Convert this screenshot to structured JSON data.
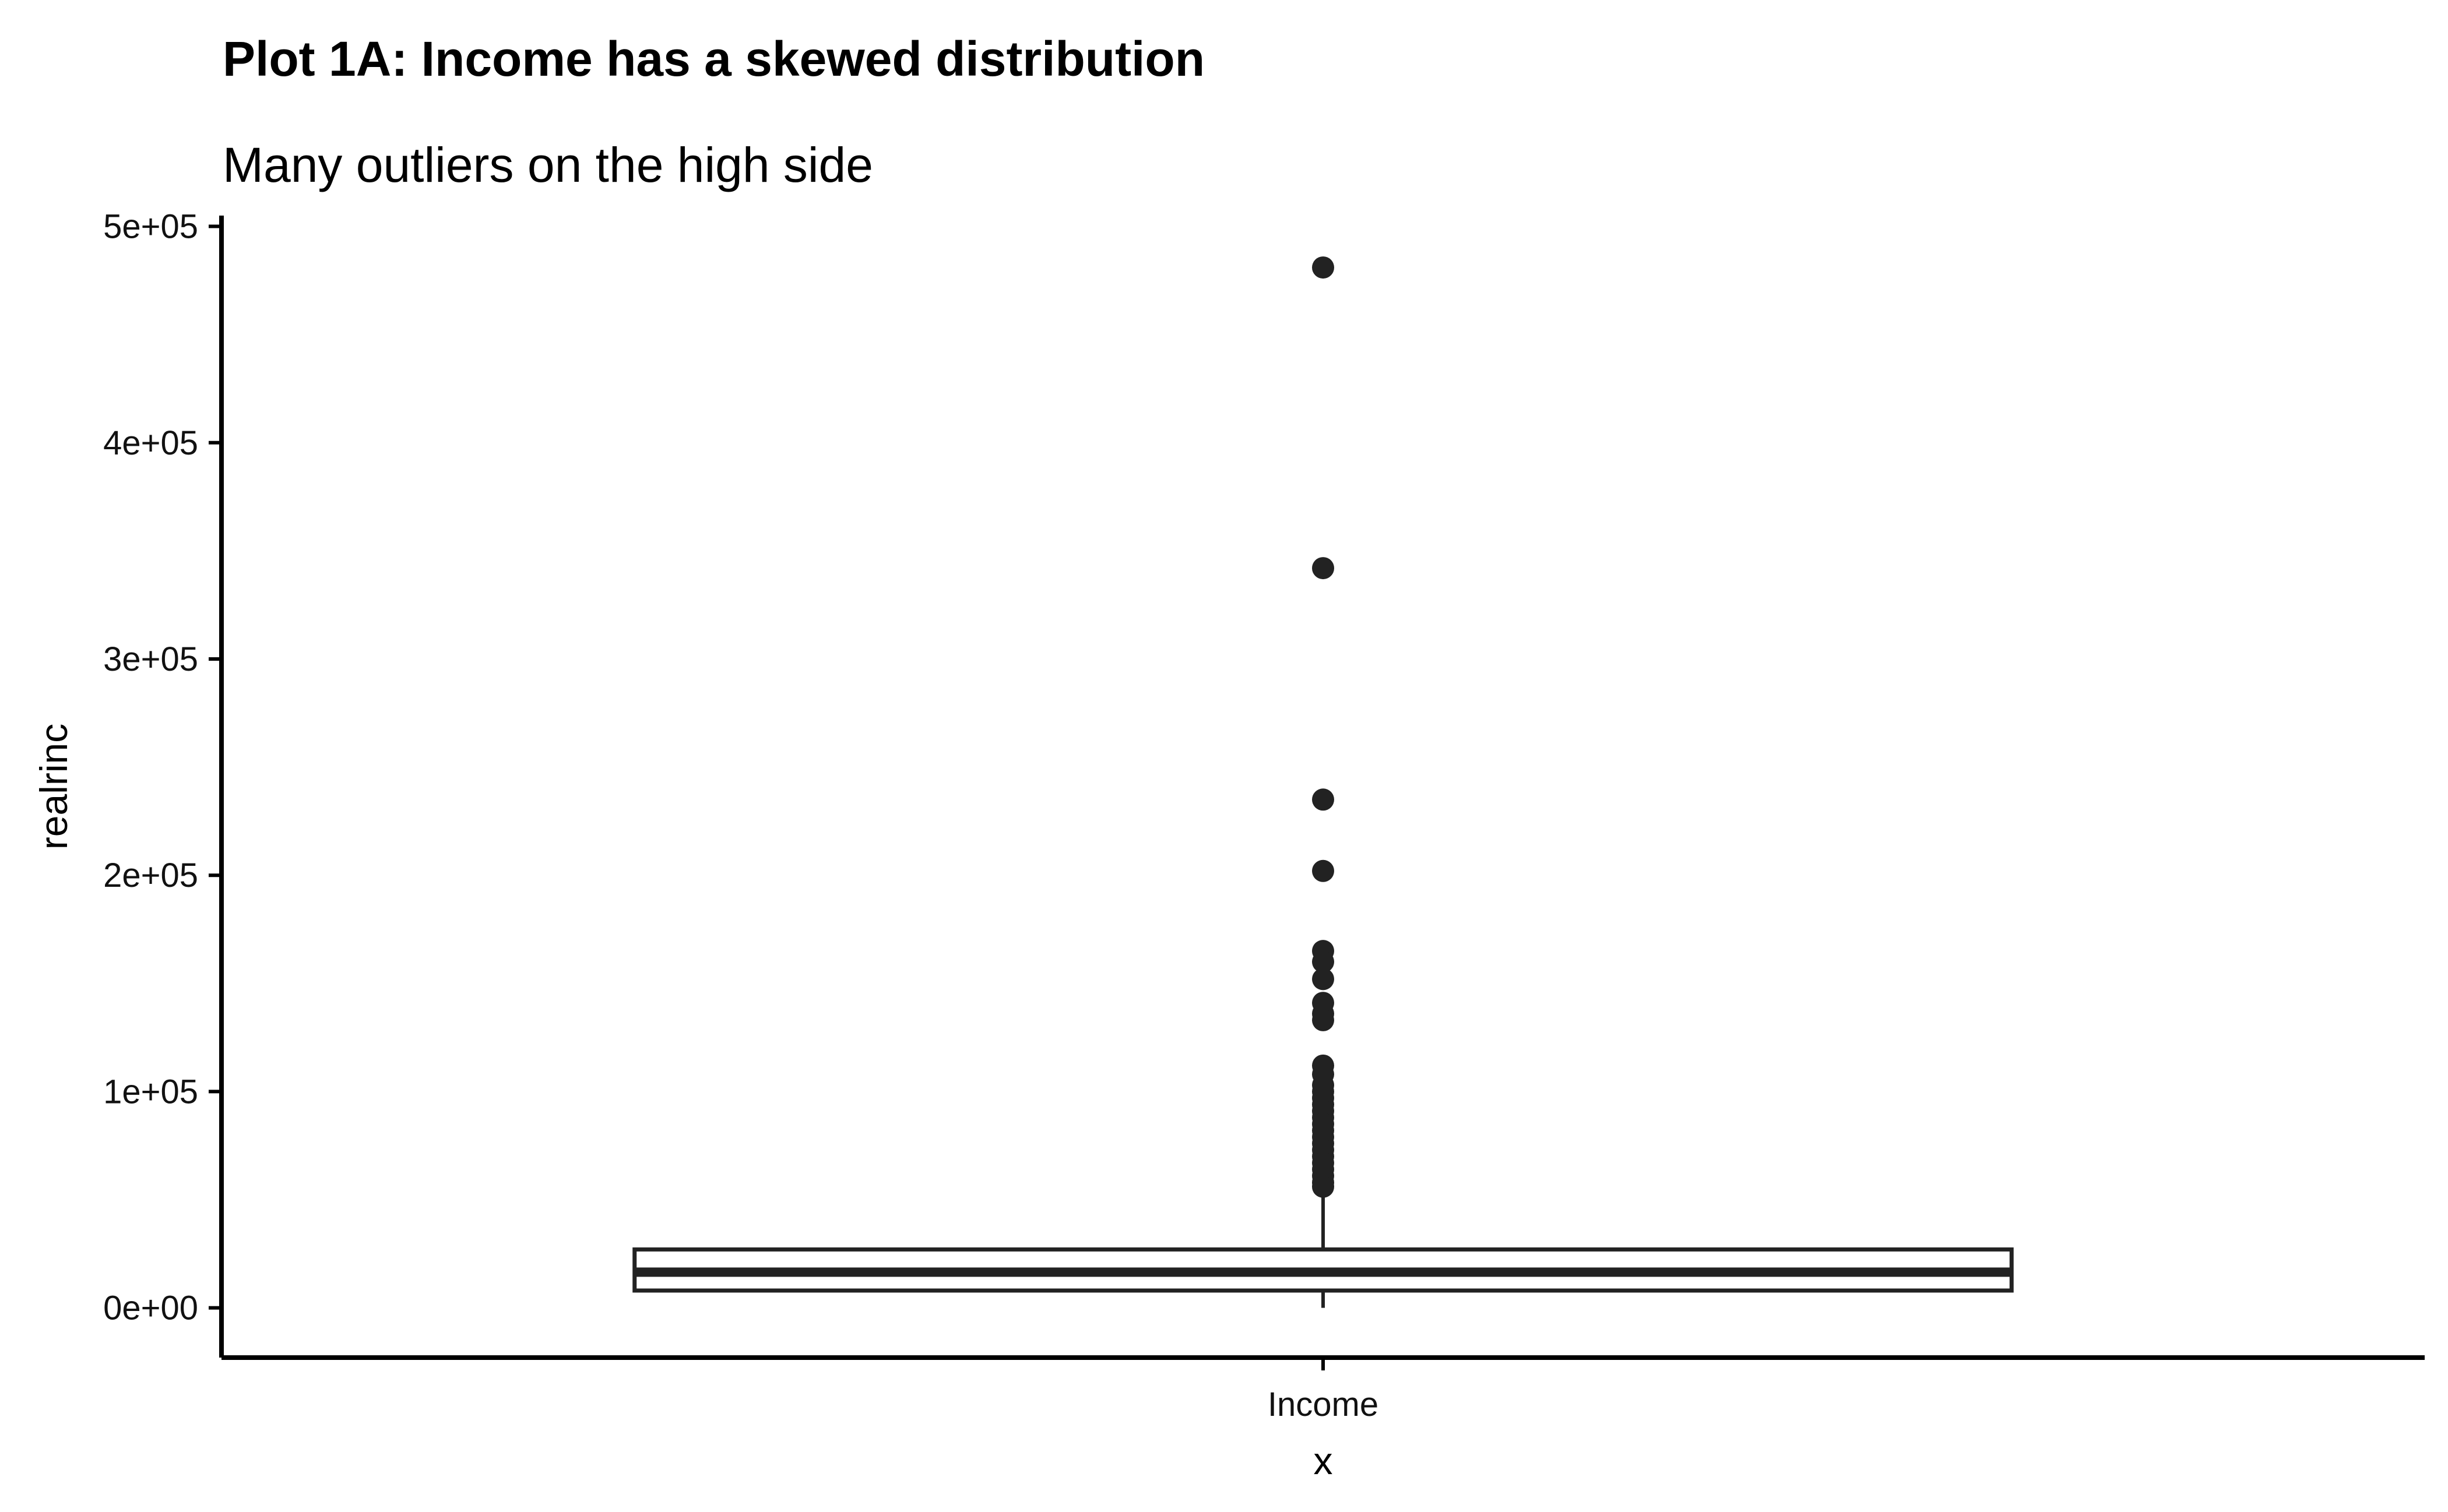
{
  "chart_data": {
    "type": "boxplot",
    "title": "Plot 1A: Income has a skewed distribution",
    "subtitle": "Many outliers on the high side",
    "xlabel": "x",
    "ylabel": "realrinc",
    "categories": [
      "Income"
    ],
    "ylim": [
      -23000,
      505000
    ],
    "y_ticks": [
      0,
      100000,
      200000,
      300000,
      400000,
      500000
    ],
    "y_tick_labels": [
      "0e+00",
      "1e+05",
      "2e+05",
      "3e+05",
      "4e+05",
      "5e+05"
    ],
    "boxes": [
      {
        "category": "Income",
        "min": 0,
        "q1": 8000,
        "median": 16500,
        "q3": 27000,
        "whisker_high": 54000,
        "outliers": [
          481000,
          342000,
          235000,
          202000,
          165000,
          160000,
          152000,
          141000,
          136000,
          133000,
          112000,
          108000,
          103000,
          100000,
          97000,
          94000,
          91000,
          88000,
          85000,
          82000,
          79000,
          76000,
          73000,
          70000,
          67000,
          64000,
          61000,
          58000,
          56000
        ]
      }
    ],
    "grid": false,
    "colors": {
      "box_outline": "#222222",
      "box_fill": "#ffffff",
      "points": "#222222",
      "axis": "#000000"
    }
  }
}
